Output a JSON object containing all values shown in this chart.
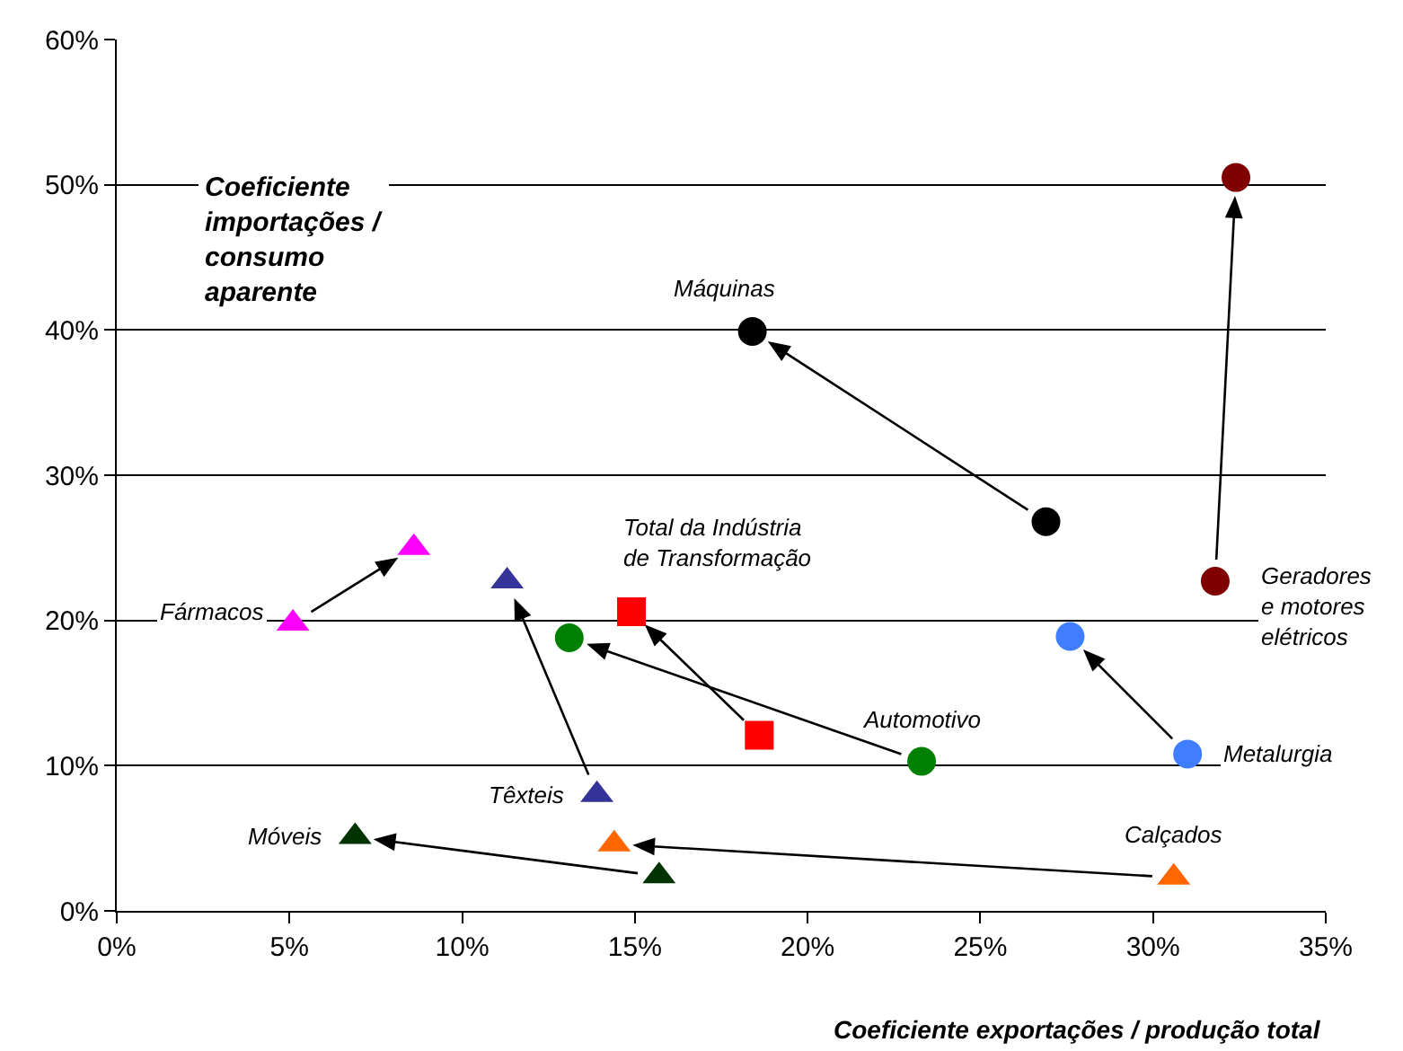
{
  "chart_data": {
    "type": "scatter",
    "xlabel": "Coeficiente exportações / produção total",
    "ylabel": "Coeficiente importações / consumo aparente",
    "xlim": [
      0,
      35
    ],
    "xticks": [
      {
        "value": 0,
        "label": "0%"
      },
      {
        "value": 5,
        "label": "5%"
      },
      {
        "value": 10,
        "label": "10%"
      },
      {
        "value": 15,
        "label": "15%"
      },
      {
        "value": 20,
        "label": "20%"
      },
      {
        "value": 25,
        "label": "25%"
      },
      {
        "value": 30,
        "label": "30%"
      },
      {
        "value": 35,
        "label": "35%"
      }
    ],
    "ylim": [
      0,
      60
    ],
    "yticks": [
      {
        "value": 0,
        "label": "0%"
      },
      {
        "value": 10,
        "label": "10%"
      },
      {
        "value": 20,
        "label": "20%"
      },
      {
        "value": 30,
        "label": "30%"
      },
      {
        "value": 40,
        "label": "40%"
      },
      {
        "value": 50,
        "label": "50%"
      },
      {
        "value": 60,
        "label": "60%"
      }
    ],
    "grid": "y",
    "legend": false,
    "series": [
      {
        "name": "Máquinas",
        "color": "#000000",
        "marker": "circle",
        "x": [
          26.9,
          18.4
        ],
        "values": [
          26.8,
          39.9
        ]
      },
      {
        "name": "Geradores e motores elétricos",
        "color": "#800000",
        "marker": "circle",
        "x": [
          31.8,
          32.4
        ],
        "values": [
          22.7,
          50.5
        ]
      },
      {
        "name": "Metalurgia",
        "color": "#3f7fff",
        "marker": "circle",
        "x": [
          31.0,
          27.6
        ],
        "values": [
          10.8,
          18.9
        ]
      },
      {
        "name": "Automotivo",
        "color": "#008000",
        "marker": "circle",
        "x": [
          23.3,
          13.1
        ],
        "values": [
          10.3,
          18.8
        ]
      },
      {
        "name": "Total da Indústria de Transformação",
        "color": "#ff0000",
        "marker": "square",
        "x": [
          18.6,
          14.9
        ],
        "values": [
          12.1,
          20.6
        ]
      },
      {
        "name": "Fármacos",
        "color": "#ff00ff",
        "marker": "triangle",
        "x": [
          5.1,
          8.6
        ],
        "values": [
          19.8,
          25.0
        ]
      },
      {
        "name": "Têxteis",
        "color": "#333399",
        "marker": "triangle",
        "x": [
          13.9,
          11.3
        ],
        "values": [
          8.0,
          22.7
        ]
      },
      {
        "name": "Móveis",
        "color": "#003300",
        "marker": "triangle",
        "x": [
          15.7,
          6.9
        ],
        "values": [
          2.4,
          5.1
        ]
      },
      {
        "name": "Calçados",
        "color": "#ff6600",
        "marker": "triangle",
        "x": [
          30.6,
          14.4
        ],
        "values": [
          2.3,
          4.6
        ]
      }
    ]
  }
}
